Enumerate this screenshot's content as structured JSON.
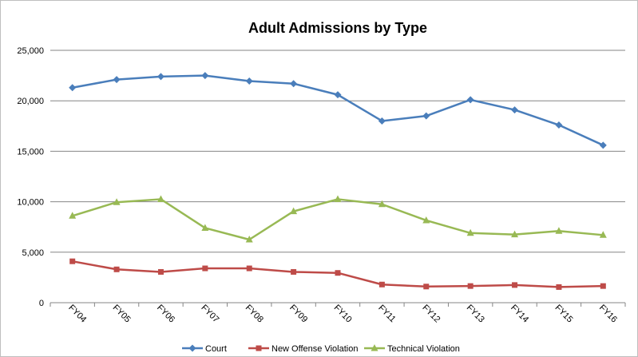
{
  "chart_data": {
    "type": "line",
    "title": "Adult Admissions by Type",
    "xlabel": "",
    "ylabel": "",
    "categories": [
      "FY04",
      "FY05",
      "FY06",
      "FY07",
      "FY08",
      "FY09",
      "FY10",
      "FY11",
      "FY12",
      "FY13",
      "FY14",
      "FY15",
      "FY16"
    ],
    "ylim": [
      0,
      25000
    ],
    "yticks": [
      0,
      5000,
      10000,
      15000,
      20000,
      25000
    ],
    "ytick_labels": [
      "0",
      "5,000",
      "10,000",
      "15,000",
      "20,000",
      "25,000"
    ],
    "grid": true,
    "legend_position": "bottom",
    "series": [
      {
        "name": "Court",
        "color": "#4a7ebb",
        "marker": "diamond",
        "values": [
          21300,
          22100,
          22400,
          22500,
          21950,
          21700,
          20600,
          18000,
          18500,
          20100,
          19100,
          17600,
          15600
        ]
      },
      {
        "name": "New Offense Violation",
        "color": "#be4b48",
        "marker": "square",
        "values": [
          4100,
          3300,
          3050,
          3400,
          3400,
          3050,
          2950,
          1800,
          1600,
          1650,
          1750,
          1550,
          1650
        ]
      },
      {
        "name": "Technical Violation",
        "color": "#98b954",
        "marker": "triangle",
        "values": [
          8600,
          9950,
          10250,
          7400,
          6250,
          9050,
          10250,
          9750,
          8150,
          6900,
          6750,
          7100,
          6700
        ]
      }
    ]
  }
}
